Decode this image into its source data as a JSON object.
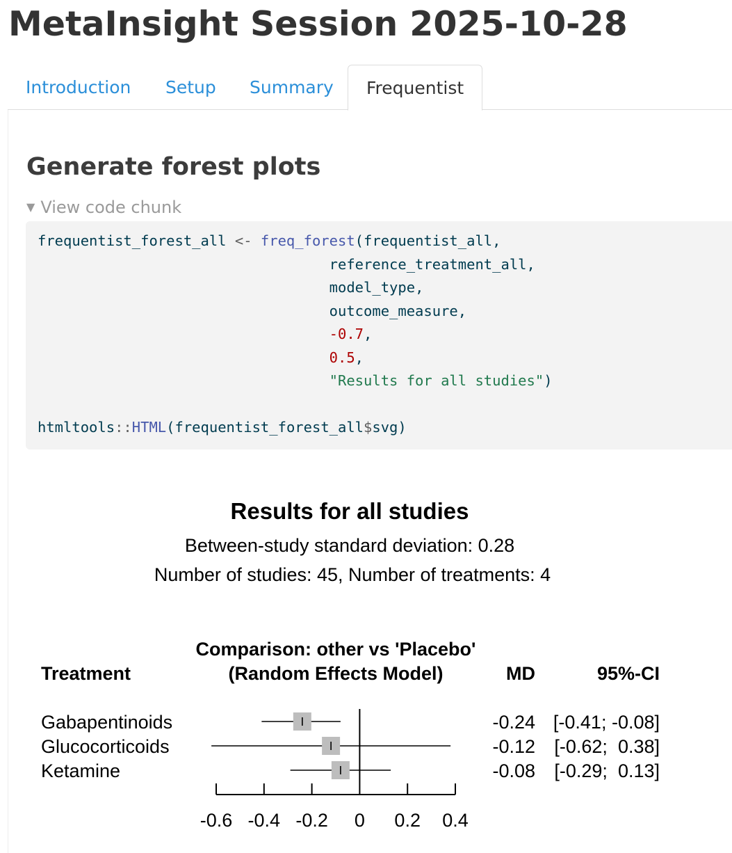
{
  "page_title": "MetaInsight Session 2025-10-28",
  "tabs": [
    {
      "label": "Introduction",
      "active": false
    },
    {
      "label": "Setup",
      "active": false
    },
    {
      "label": "Summary",
      "active": false
    },
    {
      "label": "Frequentist",
      "active": true
    }
  ],
  "section_title": "Generate forest plots",
  "code_toggle_label": "View code chunk",
  "code": {
    "var_name": "frequentist_forest_all",
    "assign_op": "<-",
    "fn_name": "freq_forest",
    "args": [
      "frequentist_all",
      "reference_treatment_all",
      "model_type",
      "outcome_measure"
    ],
    "num_args": [
      "-0.7",
      "0.5"
    ],
    "string_arg": "\"Results for all studies\"",
    "pkg": "htmltools",
    "ns_op": "::",
    "fn2_name": "HTML",
    "obj": "frequentist_forest_all",
    "dollar": "$",
    "field": "svg"
  },
  "plot": {
    "title": "Results for all studies",
    "subtitle1": "Between-study standard deviation: 0.28",
    "subtitle2": "Number of studies: 45, Number of treatments: 4",
    "comparison_line1": "Comparison: other vs 'Placebo'",
    "comparison_line2": "(Random Effects Model)",
    "col_treatment": "Treatment",
    "col_md": "MD",
    "col_ci": "95%-CI"
  },
  "chart_data": {
    "type": "forest",
    "x_ticks": [
      "-0.6",
      "-0.4",
      "-0.2",
      "0",
      "0.2",
      "0.4"
    ],
    "xlim": [
      -0.6,
      0.4
    ],
    "rows": [
      {
        "treatment": "Gabapentinoids",
        "md": -0.24,
        "lower": -0.41,
        "upper": -0.08,
        "md_label": "-0.24",
        "ci_label": "[-0.41; -0.08]"
      },
      {
        "treatment": "Glucocorticoids",
        "md": -0.12,
        "lower": -0.62,
        "upper": 0.38,
        "md_label": "-0.12",
        "ci_label": "[-0.62;  0.38]"
      },
      {
        "treatment": "Ketamine",
        "md": -0.08,
        "lower": -0.29,
        "upper": 0.13,
        "md_label": "-0.08",
        "ci_label": "[-0.29;  0.13]"
      }
    ]
  }
}
